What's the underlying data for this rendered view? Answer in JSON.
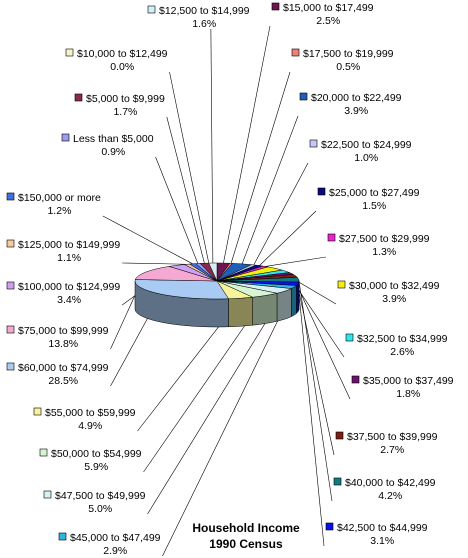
{
  "chart_data": {
    "type": "pie",
    "title": "Household Income",
    "subtitle": "1990 Census",
    "unit": "%",
    "slices": [
      {
        "label": "$15,000 to $17,499",
        "value": 2.5,
        "value_text": "2.5%",
        "color": "#6b1650"
      },
      {
        "label": "$17,500 to $19,999",
        "value": 0.5,
        "value_text": "0.5%",
        "color": "#f07f7c"
      },
      {
        "label": "$20,000 to $22,499",
        "value": 3.9,
        "value_text": "3.9%",
        "color": "#1f5fb5"
      },
      {
        "label": "$22,500 to $24,999",
        "value": 1.0,
        "value_text": "1.0%",
        "color": "#c4c8f4"
      },
      {
        "label": "$25,000 to $27,499",
        "value": 1.5,
        "value_text": "1.5%",
        "color": "#0a0a80"
      },
      {
        "label": "$27,500 to $29,999",
        "value": 1.3,
        "value_text": "1.3%",
        "color": "#e826d0"
      },
      {
        "label": "$30,000 to $32,499",
        "value": 3.9,
        "value_text": "3.9%",
        "color": "#f2ee10"
      },
      {
        "label": "$32,500 to $34,999",
        "value": 2.6,
        "value_text": "2.6%",
        "color": "#2ee6ee"
      },
      {
        "label": "$35,000 to $37,499",
        "value": 1.8,
        "value_text": "1.8%",
        "color": "#6e116e"
      },
      {
        "label": "$37,500 to $39,999",
        "value": 2.7,
        "value_text": "2.7%",
        "color": "#7e1d12"
      },
      {
        "label": "$40,000 to $42,499",
        "value": 4.2,
        "value_text": "4.2%",
        "color": "#137a80"
      },
      {
        "label": "$42,500 to $44,999",
        "value": 3.1,
        "value_text": "3.1%",
        "color": "#0a12e8"
      },
      {
        "label": "$45,000 to $47,499",
        "value": 2.9,
        "value_text": "2.9%",
        "color": "#2fb3e0"
      },
      {
        "label": "$47,500 to $49,999",
        "value": 5.0,
        "value_text": "5.0%",
        "color": "#d6f0f3"
      },
      {
        "label": "$50,000 to $54,999",
        "value": 5.9,
        "value_text": "5.9%",
        "color": "#d7f5d2"
      },
      {
        "label": "$55,000 to $59,999",
        "value": 4.9,
        "value_text": "4.9%",
        "color": "#f7f29c"
      },
      {
        "label": "$60,000 to $74,999",
        "value": 28.5,
        "value_text": "28.5%",
        "color": "#a9cbf3"
      },
      {
        "label": "$75,000 to $99,999",
        "value": 13.8,
        "value_text": "13.8%",
        "color": "#f5a9d2"
      },
      {
        "label": "$100,000 to $124,999",
        "value": 3.4,
        "value_text": "3.4%",
        "color": "#cca1f2"
      },
      {
        "label": "$125,000 to $149,999",
        "value": 1.1,
        "value_text": "1.1%",
        "color": "#f4c99c"
      },
      {
        "label": "$150,000 or more",
        "value": 1.2,
        "value_text": "1.2%",
        "color": "#3f6fe0"
      },
      {
        "label": "Less than $5,000",
        "value": 0.9,
        "value_text": "0.9%",
        "color": "#9b9bf0"
      },
      {
        "label": "$5,000 to $9,999",
        "value": 1.7,
        "value_text": "1.7%",
        "color": "#8a2a4a"
      },
      {
        "label": "$10,000 to $12,499",
        "value": 0.0,
        "value_text": "0.0%",
        "color": "#f6f4c6"
      },
      {
        "label": "$12,500 to $14,999",
        "value": 1.6,
        "value_text": "1.6%",
        "color": "#d2f0f6"
      }
    ]
  }
}
